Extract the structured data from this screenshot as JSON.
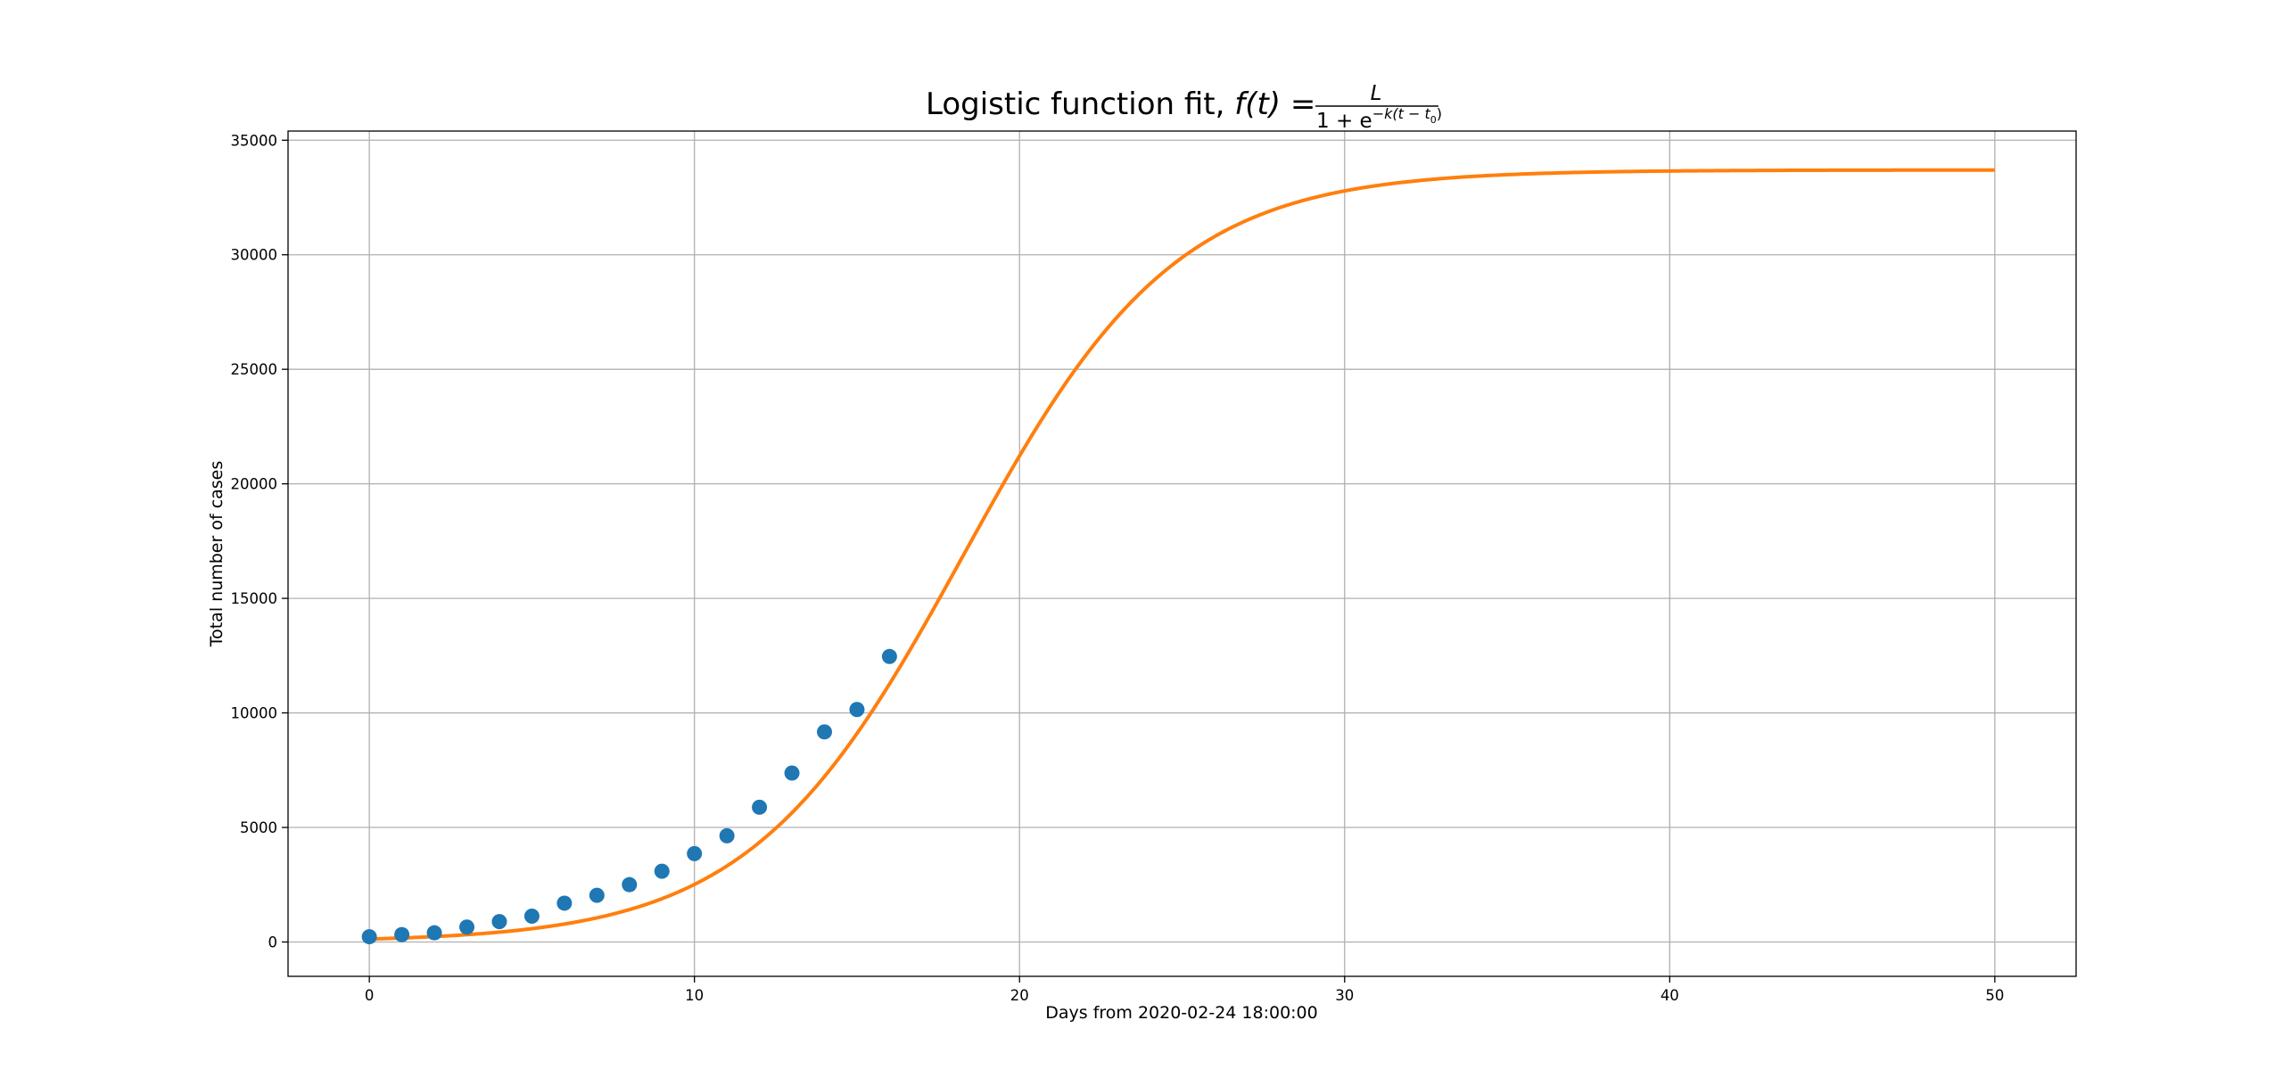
{
  "chart_data": {
    "type": "scatter",
    "title": {
      "prefix": "Logistic function fit, ",
      "formula_lhs": "f(t) =",
      "formula_numerator": "L",
      "formula_denominator_base": "1 + e",
      "formula_denominator_exponent": "−k(t − t",
      "formula_subscript": "0",
      "formula_exponent_close": ")"
    },
    "xlabel": "Days from 2020-02-24 18:00:00",
    "ylabel": "Total number of cases",
    "xlim": [
      -2.5,
      52.5
    ],
    "ylim": [
      -1500,
      35400
    ],
    "xticks": [
      0,
      10,
      20,
      30,
      40,
      50
    ],
    "yticks": [
      0,
      5000,
      10000,
      15000,
      20000,
      25000,
      30000,
      35000
    ],
    "grid": true,
    "colors": {
      "points": "#1f77b4",
      "fit": "#ff7f0e"
    },
    "series": [
      {
        "kind": "scatter",
        "x": [
          0,
          1,
          2,
          3,
          4,
          5,
          6,
          7,
          8,
          9,
          10,
          11,
          12,
          13,
          14,
          15,
          16
        ],
        "y": [
          229,
          322,
          400,
          650,
          888,
          1128,
          1694,
          2036,
          2502,
          3089,
          3858,
          4636,
          5883,
          7375,
          9172,
          10149,
          12462
        ]
      },
      {
        "kind": "line",
        "function": "logistic",
        "params": {
          "L": 33700,
          "k": 0.305,
          "t0": 18.26
        },
        "x_range": [
          0,
          50
        ]
      }
    ]
  }
}
